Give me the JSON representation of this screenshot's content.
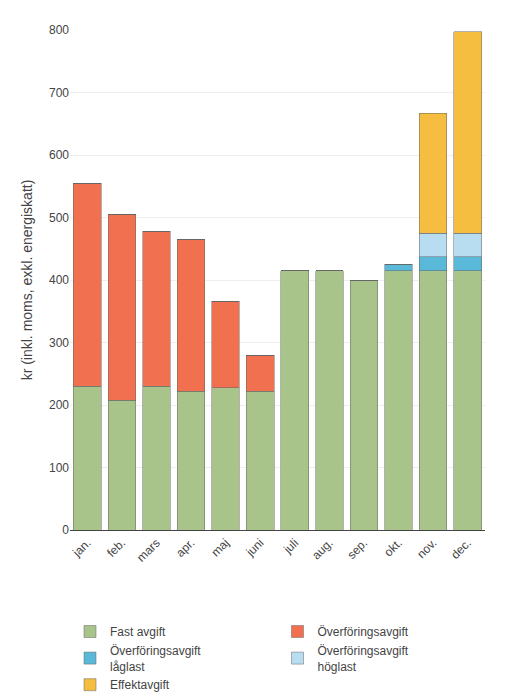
{
  "chart_data": {
    "type": "bar",
    "stacked": true,
    "ylabel": "kr (inkl. moms, exkl. energiskatt)",
    "categories": [
      "jan.",
      "feb.",
      "mars",
      "apr.",
      "maj",
      "juni",
      "juli",
      "aug.",
      "sep.",
      "okt.",
      "nov.",
      "dec."
    ],
    "series": [
      {
        "name": "Fast avgift",
        "color": "#a8c48a",
        "values": [
          230,
          208,
          230,
          222,
          228,
          222,
          415,
          415,
          400,
          415,
          415,
          415
        ]
      },
      {
        "name": "Överföringsavgift",
        "color": "#f07050",
        "values": [
          325,
          297,
          248,
          243,
          138,
          58,
          0,
          0,
          0,
          0,
          0,
          0
        ]
      },
      {
        "name": "Överföringsavgift\nlåglast",
        "color": "#5ab8d8",
        "values": [
          0,
          0,
          0,
          0,
          0,
          0,
          0,
          0,
          0,
          10,
          22,
          22
        ]
      },
      {
        "name": "Överföringsavgift\nhöglast",
        "color": "#b8ddf0",
        "values": [
          0,
          0,
          0,
          0,
          0,
          0,
          0,
          0,
          0,
          0,
          38,
          38
        ]
      },
      {
        "name": "Effektavgift",
        "color": "#f5be40",
        "values": [
          0,
          0,
          0,
          0,
          0,
          0,
          0,
          0,
          0,
          0,
          192,
          322
        ]
      }
    ],
    "ylim": [
      0,
      800
    ],
    "yticks": [
      0,
      100,
      200,
      300,
      400,
      500,
      600,
      700,
      800
    ],
    "grid": true
  }
}
